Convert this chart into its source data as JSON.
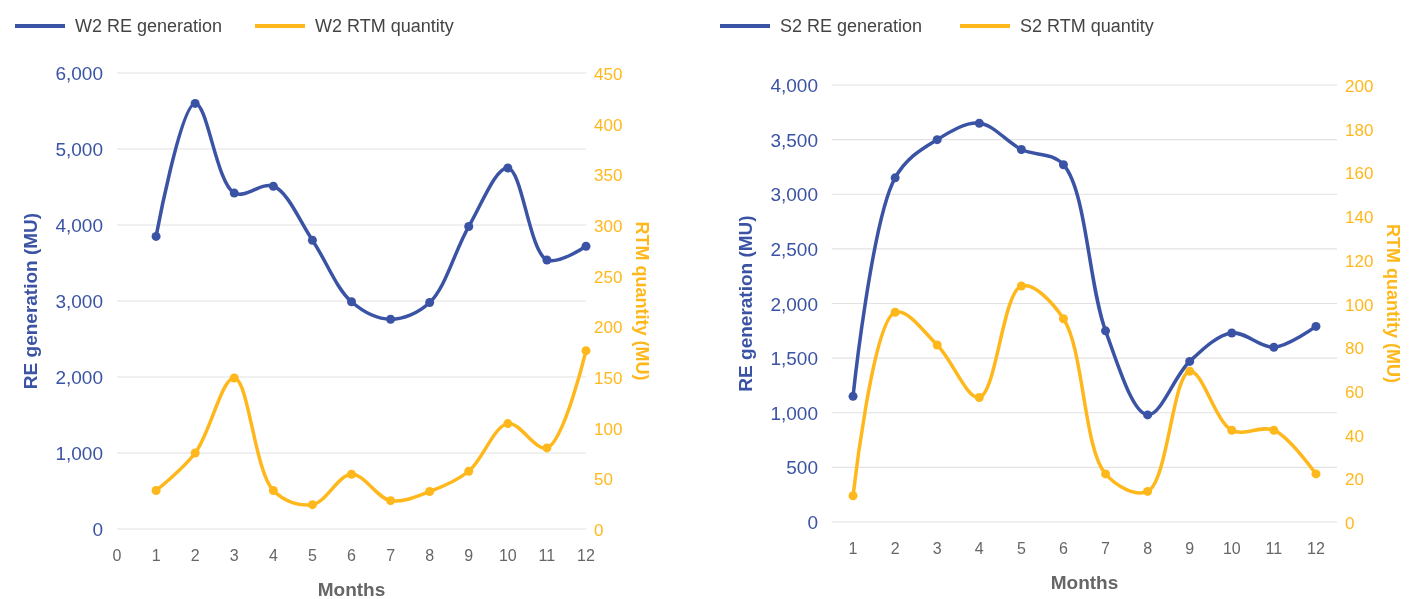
{
  "chart_data": [
    {
      "type": "line",
      "xlabel": "Months",
      "ylabel": "RE generation (MU)",
      "y2label": "RTM quantity (MU)",
      "x": [
        1,
        2,
        3,
        4,
        5,
        6,
        7,
        8,
        9,
        10,
        11,
        12
      ],
      "xlim": [
        0,
        12
      ],
      "xticks": [
        0,
        1,
        2,
        3,
        4,
        5,
        6,
        7,
        8,
        9,
        10,
        11,
        12
      ],
      "ylim": [
        0,
        6000
      ],
      "yticks": [
        {
          "value": 0,
          "label": "0"
        },
        {
          "value": 1000,
          "label": "1,000"
        },
        {
          "value": 2000,
          "label": "2,000"
        },
        {
          "value": 3000,
          "label": "3,000"
        },
        {
          "value": 4000,
          "label": "4,000"
        },
        {
          "value": 5000,
          "label": "5,000"
        },
        {
          "value": 6000,
          "label": "6,000"
        }
      ],
      "y2lim": [
        0,
        450
      ],
      "y2ticks": [
        0,
        50,
        100,
        150,
        200,
        250,
        300,
        350,
        400,
        450
      ],
      "grid": "y",
      "legend": "top left",
      "marker": "circle",
      "series": [
        {
          "name": "W2 RE generation",
          "color": "#3a53a4",
          "values": [
            3850,
            5600,
            4420,
            4510,
            3800,
            2990,
            2760,
            2980,
            3980,
            4750,
            3540,
            3720
          ]
        },
        {
          "name": "W2 RTM quantity",
          "color": "#ffb81c",
          "axis": "y2",
          "values": [
            38,
            75,
            149,
            38,
            24,
            54,
            28,
            37,
            57,
            104,
            80,
            176
          ]
        }
      ]
    },
    {
      "type": "line",
      "xlabel": "Months",
      "ylabel": "RE generation (MU)",
      "y2label": "RTM quantity (MU)",
      "x": [
        1,
        2,
        3,
        4,
        5,
        6,
        7,
        8,
        9,
        10,
        11,
        12
      ],
      "xlim": [
        0.5,
        12.5
      ],
      "xticks": [
        1,
        2,
        3,
        4,
        5,
        6,
        7,
        8,
        9,
        10,
        11,
        12
      ],
      "ylim": [
        0,
        4000
      ],
      "yticks": [
        0,
        500,
        {
          "value": 1000,
          "label": "1,000"
        },
        {
          "value": 1500,
          "label": "1,500"
        },
        {
          "value": 2000,
          "label": "2,000"
        },
        {
          "value": 2500,
          "label": "2,500"
        },
        {
          "value": 3000,
          "label": "3,000"
        },
        {
          "value": 3500,
          "label": "3,500"
        },
        {
          "value": 4000,
          "label": "4,000"
        }
      ],
      "y2lim": [
        0,
        200
      ],
      "y2ticks": [
        0,
        20,
        40,
        60,
        80,
        100,
        120,
        140,
        160,
        180,
        200
      ],
      "grid": "y",
      "legend": "top left",
      "marker": "circle",
      "series": [
        {
          "name": "S2 RE generation",
          "color": "#3a53a4",
          "values": [
            1150,
            3150,
            3500,
            3650,
            3410,
            3270,
            1750,
            980,
            1470,
            1730,
            1600,
            1790
          ]
        },
        {
          "name": "S2 RTM quantity",
          "color": "#ffb81c",
          "axis": "y2",
          "values": [
            12,
            96,
            81,
            57,
            108,
            93,
            22,
            14,
            69,
            42,
            42,
            22
          ]
        }
      ]
    }
  ]
}
